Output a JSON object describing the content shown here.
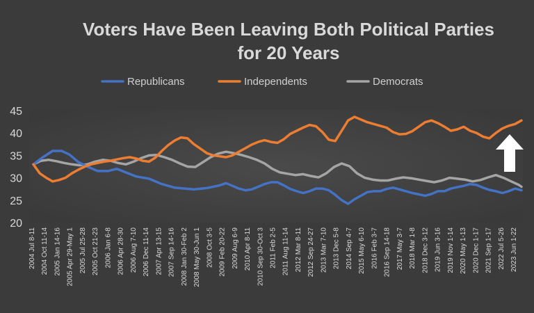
{
  "chart_data": {
    "type": "line",
    "title": [
      "Voters Have Been Leaving Both Political Parties",
      "for 20 Years"
    ],
    "xlabel": "",
    "ylabel": "",
    "ylim": [
      20,
      45
    ],
    "yticks": [
      20,
      25,
      30,
      35,
      40,
      45
    ],
    "x_tick_labels": [
      "2004 Jul 8-11",
      "2004 Oct 11-14",
      "2005 Jan 14-16",
      "2005 Apr 29-May 1",
      "2005 Jul 25-28",
      "2005 Oct 21-23",
      "2006 Jan 6-8",
      "2006 Apr 28-30",
      "2006 Aug 7-10",
      "2006 Dec 11-14",
      "2007 Apr 13-15",
      "2007 Sep 14-16",
      "2008 Jan 30-Feb 2",
      "2008 May 30-Jun 1",
      "2008 Oct 3-5",
      "2009 Feb 20-22",
      "2009 Aug 6-9",
      "2010 Apr 8-11",
      "2010 Sep 30-Oct 3",
      "2011 Feb 2-5",
      "2011 Aug 11-14",
      "2012 Mar 8-11",
      "2012 Sep 24-27",
      "2013 Mar 7-10",
      "2013 Dec 5-8",
      "2014 Sep 4-7",
      "2015 May 6-10",
      "2016 Feb 3-7",
      "2016 Sep 14-18",
      "2017 May 3-7",
      "2018 Mar 1-8",
      "2018 Dec 3-12",
      "2019 Jun 3-16",
      "2019 Nov 1-14",
      "2020 May 1-13",
      "2020 Dec 1-17",
      "2021 Sep 1-17",
      "2022 Jul 5-26",
      "2023 Jun 1-22"
    ],
    "x_range": [
      0,
      38
    ],
    "legend_position": "top",
    "series": [
      {
        "name": "Republicans",
        "color": "#4472c4",
        "points": [
          [
            0,
            33
          ],
          [
            0.7,
            34.5
          ],
          [
            1.5,
            36
          ],
          [
            2.2,
            36
          ],
          [
            2.8,
            35.2
          ],
          [
            3.5,
            33.5
          ],
          [
            4.2,
            32.5
          ],
          [
            5,
            31.5
          ],
          [
            5.8,
            31.5
          ],
          [
            6.5,
            32
          ],
          [
            7.2,
            31.2
          ],
          [
            8,
            30.3
          ],
          [
            9,
            29.8
          ],
          [
            10,
            28.6
          ],
          [
            11,
            27.8
          ],
          [
            11.8,
            27.6
          ],
          [
            12.5,
            27.4
          ],
          [
            13.5,
            27.7
          ],
          [
            14.5,
            28.3
          ],
          [
            15,
            28.8
          ],
          [
            15.5,
            28.2
          ],
          [
            16,
            27.6
          ],
          [
            16.5,
            27.2
          ],
          [
            17,
            27.4
          ],
          [
            17.5,
            28
          ],
          [
            18,
            28.6
          ],
          [
            18.5,
            29
          ],
          [
            19,
            29
          ],
          [
            19.5,
            28.3
          ],
          [
            20,
            27.5
          ],
          [
            20.5,
            27
          ],
          [
            21,
            26.6
          ],
          [
            21.5,
            27
          ],
          [
            22,
            27.6
          ],
          [
            22.5,
            27.6
          ],
          [
            23,
            27.2
          ],
          [
            23.5,
            26.2
          ],
          [
            24,
            25
          ],
          [
            24.5,
            24.2
          ],
          [
            25,
            25.2
          ],
          [
            25.5,
            26
          ],
          [
            26,
            26.8
          ],
          [
            26.5,
            27
          ],
          [
            27,
            27
          ],
          [
            27.5,
            27.5
          ],
          [
            28,
            27.8
          ],
          [
            28.5,
            27.4
          ],
          [
            29,
            27
          ],
          [
            29.5,
            26.6
          ],
          [
            30,
            26.3
          ],
          [
            30.5,
            26
          ],
          [
            31,
            26.4
          ],
          [
            31.5,
            27
          ],
          [
            32,
            27
          ],
          [
            32.5,
            27.6
          ],
          [
            33,
            27.9
          ],
          [
            33.5,
            28.2
          ],
          [
            34,
            28.6
          ],
          [
            34.5,
            28.4
          ],
          [
            35,
            27.8
          ],
          [
            35.5,
            27.3
          ],
          [
            36,
            27
          ],
          [
            36.5,
            26.6
          ],
          [
            37,
            27
          ],
          [
            37.5,
            27.6
          ],
          [
            38,
            27.2
          ]
        ]
      },
      {
        "name": "Independents",
        "color": "#ed7d31",
        "points": [
          [
            0,
            33
          ],
          [
            0.5,
            31
          ],
          [
            1,
            30
          ],
          [
            1.5,
            29.2
          ],
          [
            2,
            29.5
          ],
          [
            2.5,
            30
          ],
          [
            3,
            31
          ],
          [
            3.5,
            31.8
          ],
          [
            4,
            32.5
          ],
          [
            4.5,
            33
          ],
          [
            5,
            33.3
          ],
          [
            5.5,
            33.6
          ],
          [
            6,
            33.8
          ],
          [
            6.5,
            34.1
          ],
          [
            7,
            34.4
          ],
          [
            7.5,
            34.6
          ],
          [
            8,
            34.3
          ],
          [
            8.5,
            33.8
          ],
          [
            9,
            33.6
          ],
          [
            9.5,
            34.5
          ],
          [
            10,
            36
          ],
          [
            10.5,
            37.3
          ],
          [
            11,
            38.3
          ],
          [
            11.5,
            39
          ],
          [
            12,
            38.8
          ],
          [
            12.5,
            37.5
          ],
          [
            13,
            36.5
          ],
          [
            13.5,
            35.5
          ],
          [
            14,
            35
          ],
          [
            14.5,
            34.8
          ],
          [
            15,
            34.6
          ],
          [
            15.5,
            35
          ],
          [
            16,
            35.8
          ],
          [
            16.5,
            36.6
          ],
          [
            17,
            37.4
          ],
          [
            17.5,
            38
          ],
          [
            18,
            38.4
          ],
          [
            18.5,
            38
          ],
          [
            19,
            37.8
          ],
          [
            19.5,
            38.6
          ],
          [
            20,
            39.8
          ],
          [
            20.5,
            40.5
          ],
          [
            21,
            41.2
          ],
          [
            21.5,
            41.8
          ],
          [
            22,
            41.5
          ],
          [
            22.5,
            40.2
          ],
          [
            23,
            38.5
          ],
          [
            23.5,
            38.2
          ],
          [
            24,
            40.5
          ],
          [
            24.5,
            42.8
          ],
          [
            25,
            43.6
          ],
          [
            25.5,
            43
          ],
          [
            26,
            42.4
          ],
          [
            26.5,
            42
          ],
          [
            27,
            41.6
          ],
          [
            27.5,
            41.2
          ],
          [
            28,
            40.2
          ],
          [
            28.5,
            39.7
          ],
          [
            29,
            39.8
          ],
          [
            29.5,
            40.4
          ],
          [
            30,
            41.4
          ],
          [
            30.5,
            42.4
          ],
          [
            31,
            42.8
          ],
          [
            31.5,
            42.2
          ],
          [
            32,
            41.4
          ],
          [
            32.5,
            40.5
          ],
          [
            33,
            40.8
          ],
          [
            33.5,
            41.4
          ],
          [
            34,
            40.5
          ],
          [
            34.5,
            40
          ],
          [
            35,
            39.2
          ],
          [
            35.5,
            38.8
          ],
          [
            36,
            40
          ],
          [
            36.5,
            41
          ],
          [
            37,
            41.6
          ],
          [
            37.5,
            42
          ],
          [
            38,
            42.8
          ]
        ]
      },
      {
        "name": "Democrats",
        "color": "#a5a5a5",
        "points": [
          [
            0,
            33
          ],
          [
            0.6,
            33.8
          ],
          [
            1.2,
            34
          ],
          [
            1.8,
            33.7
          ],
          [
            2.4,
            33.3
          ],
          [
            3,
            33
          ],
          [
            3.6,
            32.8
          ],
          [
            4.2,
            33
          ],
          [
            4.8,
            33.6
          ],
          [
            5.4,
            34
          ],
          [
            6,
            33.8
          ],
          [
            6.6,
            33.3
          ],
          [
            7.2,
            33
          ],
          [
            7.8,
            33.6
          ],
          [
            8.4,
            34.4
          ],
          [
            9,
            35
          ],
          [
            9.6,
            35.1
          ],
          [
            10.2,
            34.6
          ],
          [
            10.8,
            34
          ],
          [
            11.4,
            33.2
          ],
          [
            12,
            32.5
          ],
          [
            12.6,
            32.4
          ],
          [
            13.2,
            33.5
          ],
          [
            13.8,
            34.6
          ],
          [
            14.4,
            35.4
          ],
          [
            15,
            35.8
          ],
          [
            15.6,
            35.5
          ],
          [
            16.2,
            35.1
          ],
          [
            16.8,
            34.6
          ],
          [
            17.4,
            34
          ],
          [
            18,
            33.2
          ],
          [
            18.6,
            32
          ],
          [
            19.2,
            31.2
          ],
          [
            19.8,
            30.9
          ],
          [
            20.4,
            30.6
          ],
          [
            21,
            30.8
          ],
          [
            21.6,
            30.4
          ],
          [
            22.2,
            30.1
          ],
          [
            22.8,
            31
          ],
          [
            23.4,
            32.4
          ],
          [
            24,
            33.2
          ],
          [
            24.6,
            32.6
          ],
          [
            25.2,
            31
          ],
          [
            25.8,
            30
          ],
          [
            26.4,
            29.6
          ],
          [
            27,
            29.4
          ],
          [
            27.6,
            29.4
          ],
          [
            28.2,
            29.8
          ],
          [
            28.8,
            30.1
          ],
          [
            29.4,
            29.9
          ],
          [
            30,
            29.6
          ],
          [
            30.6,
            29.3
          ],
          [
            31.2,
            29
          ],
          [
            31.8,
            29.4
          ],
          [
            32.4,
            30
          ],
          [
            33,
            29.8
          ],
          [
            33.6,
            29.6
          ],
          [
            34.2,
            29.2
          ],
          [
            34.8,
            29.5
          ],
          [
            35.4,
            30.1
          ],
          [
            36,
            30.6
          ],
          [
            36.6,
            30
          ],
          [
            37.2,
            29.2
          ],
          [
            37.8,
            28.4
          ],
          [
            38,
            28
          ]
        ]
      }
    ]
  }
}
